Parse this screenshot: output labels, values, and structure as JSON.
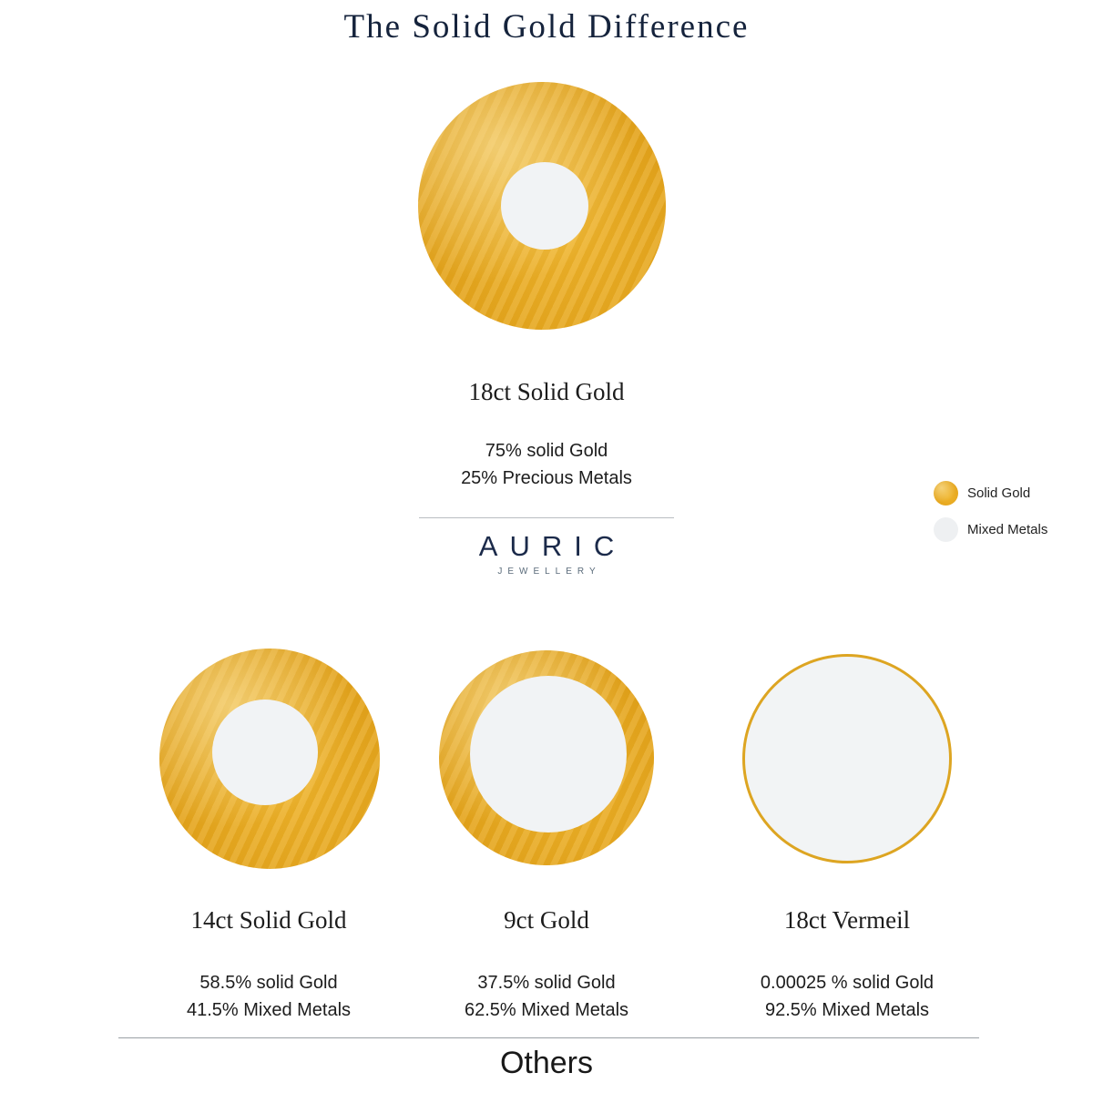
{
  "title": "The Solid Gold Difference",
  "brand": {
    "name": "AURIC",
    "subtitle": "JEWELLERY"
  },
  "legend": {
    "items": [
      {
        "label": "Solid Gold",
        "color": "#E2A118"
      },
      {
        "label": "Mixed Metals",
        "color": "#EEF0F2"
      }
    ]
  },
  "hero": {
    "name": "18ct Solid Gold",
    "line1": "75% solid Gold",
    "line2": "25% Precious Metals"
  },
  "comparisons": [
    {
      "name": "14ct Solid Gold",
      "line1": "58.5% solid Gold",
      "line2": "41.5% Mixed Metals"
    },
    {
      "name": "9ct Gold",
      "line1": "37.5% solid Gold",
      "line2": "62.5% Mixed Metals"
    },
    {
      "name": "18ct Vermeil",
      "line1": "0.00025 % solid Gold",
      "line2": "92.5% Mixed Metals"
    }
  ],
  "footer": {
    "label": "Others"
  },
  "colors": {
    "gold": "#E2A118",
    "mixed_metals": "#F1F3F5",
    "navy": "#1B2A4A",
    "text": "#1C1C1C"
  }
}
